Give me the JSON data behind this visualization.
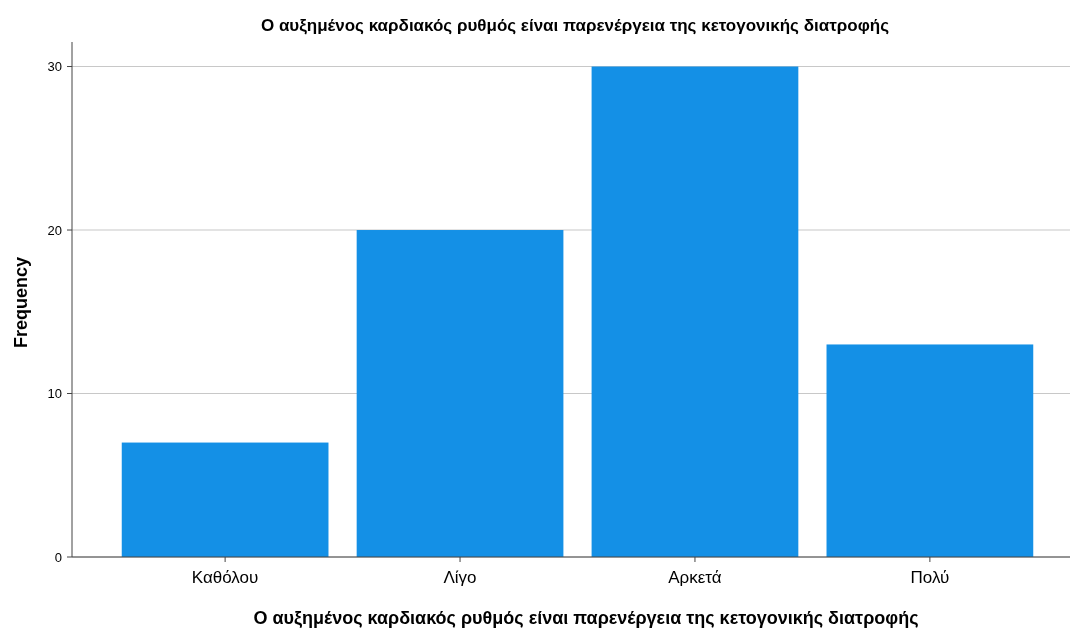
{
  "chart_data": {
    "type": "bar",
    "title": "Ο αυξημένος καρδιακός ρυθμός είναι παρενέργεια της κετογονικής διατροφής",
    "xlabel": "Ο αυξημένος καρδιακός ρυθμός είναι παρενέργεια της κετογονικής διατροφής",
    "ylabel": "Frequency",
    "categories": [
      "Καθόλου",
      "Λίγο",
      "Αρκετά",
      "Πολύ"
    ],
    "values": [
      7,
      20,
      30,
      13
    ],
    "color": "#1490e6",
    "ylim": [
      0,
      31.5
    ],
    "yticks": [
      0,
      10,
      20,
      30
    ],
    "grid": "y"
  }
}
